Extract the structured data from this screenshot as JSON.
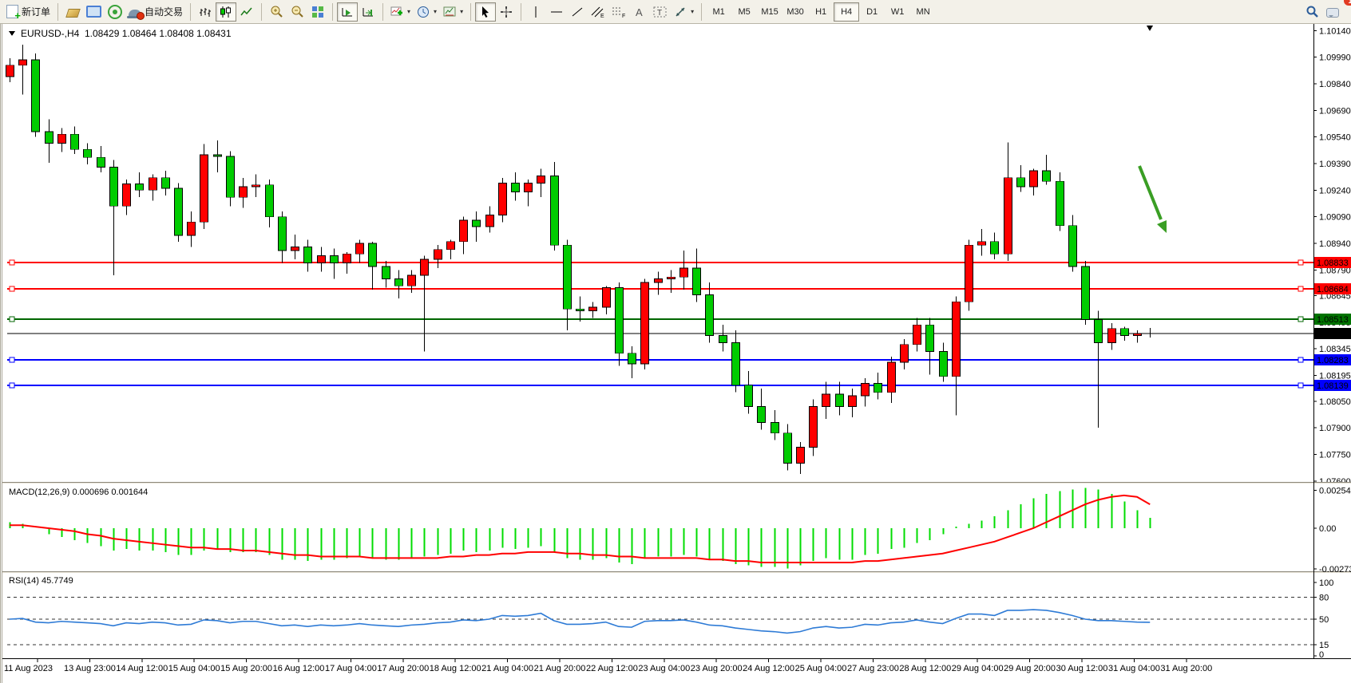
{
  "toolbar": {
    "new_order_label": "新订单",
    "autotrade_label": "自动交易",
    "timeframes": [
      "M1",
      "M5",
      "M15",
      "M30",
      "H1",
      "H4",
      "D1",
      "W1",
      "MN"
    ],
    "active_timeframe": "H4",
    "notification_badge": "1"
  },
  "chart": {
    "title_symbol": "EURUSD-,H4",
    "title_ohlc": "1.08429 1.08464 1.08408 1.08431",
    "y_ticks": [
      "1.10140",
      "1.09990",
      "1.09840",
      "1.09690",
      "1.09540",
      "1.09390",
      "1.09240",
      "1.09090",
      "1.08940",
      "1.08790",
      "1.08645",
      "1.08495",
      "1.08345",
      "1.08195",
      "1.08050",
      "1.07900",
      "1.07750",
      "1.07600"
    ],
    "levels": [
      {
        "price": 1.08833,
        "label": "1.08833",
        "color": "#ff0000",
        "box": "#ff0000",
        "width": 2,
        "handles": true
      },
      {
        "price": 1.08684,
        "label": "1.08684",
        "color": "#ff0000",
        "box": "#ff0000",
        "width": 2,
        "handles": true
      },
      {
        "price": 1.08513,
        "label": "1.08513",
        "color": "#006600",
        "box": "#007300",
        "width": 2,
        "handles": true
      },
      {
        "price": 1.08431,
        "label": "1.08431",
        "color": "#000000",
        "box": "#000000",
        "width": 1,
        "handles": false
      },
      {
        "price": 1.08283,
        "label": "1.08283",
        "color": "#0000ff",
        "box": "#0000ff",
        "width": 2,
        "handles": true
      },
      {
        "price": 1.08139,
        "label": "1.08139",
        "color": "#0000ff",
        "box": "#0000ff",
        "width": 2,
        "handles": true
      }
    ]
  },
  "macd": {
    "label": "MACD(12,26,9) 0.000696 0.001644",
    "axis": [
      {
        "value": 0.002543,
        "label": "0.002543"
      },
      {
        "value": 0,
        "label": "0.00"
      },
      {
        "value": -0.002733,
        "label": "-0.002733"
      }
    ]
  },
  "rsi": {
    "label": "RSI(14) 45.7749",
    "axis": [
      {
        "value": 100,
        "label": "100"
      },
      {
        "value": 80,
        "label": "80"
      },
      {
        "value": 50,
        "label": "50"
      },
      {
        "value": 15,
        "label": "15"
      },
      {
        "value": 0,
        "label": "0"
      }
    ],
    "dashed_levels": [
      80,
      50,
      15
    ]
  },
  "chart_data": {
    "type": "candlestick",
    "symbol": "EURUSD-",
    "timeframe": "H4",
    "up_color": "#ff0000",
    "down_color": "#00cc00",
    "macd_bar_color": "#00dc00",
    "macd_signal_color": "#ff0000",
    "rsi_line_color": "#2e7bd6",
    "arrow_drawing": {
      "type": "arrow-down-right",
      "color": "#3a9e24"
    },
    "x_axis_labels": [
      "11 Aug 2023",
      "13 Aug 23:00",
      "14 Aug 12:00",
      "15 Aug 04:00",
      "15 Aug 20:00",
      "16 Aug 12:00",
      "17 Aug 04:00",
      "17 Aug 20:00",
      "18 Aug 12:00",
      "21 Aug 04:00",
      "21 Aug 20:00",
      "22 Aug 12:00",
      "23 Aug 04:00",
      "23 Aug 20:00",
      "24 Aug 12:00",
      "25 Aug 04:00",
      "27 Aug 23:00",
      "28 Aug 12:00",
      "29 Aug 04:00",
      "29 Aug 20:00",
      "30 Aug 12:00",
      "31 Aug 04:00",
      "31 Aug 20:00"
    ],
    "y_range_main": [
      1.0755,
      1.1014
    ],
    "levels": {
      "resistance": [
        1.08833,
        1.08684
      ],
      "pivot_green": 1.08513,
      "current_price": 1.08431,
      "support": [
        1.08283,
        1.08139
      ]
    },
    "ohlc": [
      [
        1.0988,
        1.09985,
        1.0985,
        1.09945
      ],
      [
        1.09945,
        1.1006,
        1.0978,
        1.09975
      ],
      [
        1.09975,
        1.1001,
        1.0954,
        1.0957
      ],
      [
        1.0957,
        1.0964,
        1.09395,
        1.09505
      ],
      [
        1.09505,
        1.0959,
        1.09455,
        1.09555
      ],
      [
        1.09555,
        1.096,
        1.09445,
        1.0947
      ],
      [
        1.0947,
        1.09505,
        1.09385,
        1.09425
      ],
      [
        1.09425,
        1.0949,
        1.0934,
        1.0937
      ],
      [
        1.0937,
        1.0941,
        1.0876,
        1.0915
      ],
      [
        1.0915,
        1.093,
        1.091,
        1.09275
      ],
      [
        1.09275,
        1.0934,
        1.092,
        1.0924
      ],
      [
        1.0924,
        1.0933,
        1.0918,
        1.0931
      ],
      [
        1.0931,
        1.0935,
        1.0921,
        1.0925
      ],
      [
        1.0925,
        1.0928,
        1.0895,
        1.08985
      ],
      [
        1.08985,
        1.0912,
        1.0892,
        1.0906
      ],
      [
        1.0906,
        1.095,
        1.0902,
        1.0944
      ],
      [
        1.0944,
        1.0952,
        1.0934,
        1.0943
      ],
      [
        1.0943,
        1.0946,
        1.0915,
        1.092
      ],
      [
        1.092,
        1.0931,
        1.0914,
        1.0926
      ],
      [
        1.0926,
        1.0933,
        1.092,
        1.0927
      ],
      [
        1.0927,
        1.093,
        1.0903,
        1.0909
      ],
      [
        1.0909,
        1.0912,
        1.0883,
        1.089
      ],
      [
        1.089,
        1.0899,
        1.0885,
        1.0892
      ],
      [
        1.0892,
        1.0896,
        1.0878,
        1.0883
      ],
      [
        1.0883,
        1.0892,
        1.0878,
        1.0887
      ],
      [
        1.0887,
        1.0891,
        1.0874,
        1.0883
      ],
      [
        1.0883,
        1.0889,
        1.0877,
        1.0888
      ],
      [
        1.0888,
        1.0896,
        1.0883,
        1.0894
      ],
      [
        1.0894,
        1.0895,
        1.0868,
        1.0881
      ],
      [
        1.0881,
        1.0884,
        1.0869,
        1.0874
      ],
      [
        1.0874,
        1.0879,
        1.0863,
        1.087
      ],
      [
        1.087,
        1.0879,
        1.0866,
        1.0876
      ],
      [
        1.0876,
        1.0887,
        1.0833,
        1.0885
      ],
      [
        1.0885,
        1.0893,
        1.088,
        1.08905
      ],
      [
        1.08905,
        1.0896,
        1.0885,
        1.0895
      ],
      [
        1.0895,
        1.0909,
        1.0888,
        1.0907
      ],
      [
        1.0907,
        1.0912,
        1.0895,
        1.09035
      ],
      [
        1.09035,
        1.0915,
        1.09,
        1.091
      ],
      [
        1.091,
        1.0931,
        1.0906,
        1.0928
      ],
      [
        1.0928,
        1.0934,
        1.0918,
        1.0923
      ],
      [
        1.0923,
        1.093,
        1.0915,
        1.0928
      ],
      [
        1.0928,
        1.0936,
        1.092,
        1.0932
      ],
      [
        1.0932,
        1.094,
        1.089,
        1.0893
      ],
      [
        1.0893,
        1.0896,
        1.0845,
        1.0857
      ],
      [
        1.0857,
        1.0864,
        1.085,
        1.0856
      ],
      [
        1.0856,
        1.0861,
        1.0852,
        1.0858
      ],
      [
        1.0858,
        1.087,
        1.0854,
        1.0869
      ],
      [
        1.0869,
        1.0872,
        1.0825,
        1.0832
      ],
      [
        1.0832,
        1.0836,
        1.0818,
        1.0826
      ],
      [
        1.0826,
        1.0874,
        1.0823,
        1.0872
      ],
      [
        1.0872,
        1.0878,
        1.0865,
        1.0874
      ],
      [
        1.0874,
        1.0879,
        1.0866,
        1.0875
      ],
      [
        1.0875,
        1.089,
        1.0868,
        1.088
      ],
      [
        1.088,
        1.0891,
        1.0861,
        1.0865
      ],
      [
        1.0865,
        1.0872,
        1.0838,
        1.0842
      ],
      [
        1.0842,
        1.0848,
        1.0833,
        1.0838
      ],
      [
        1.0838,
        1.0845,
        1.081,
        1.0814
      ],
      [
        1.0814,
        1.0822,
        1.0798,
        1.0802
      ],
      [
        1.0802,
        1.0812,
        1.0789,
        1.0793
      ],
      [
        1.0793,
        1.08,
        1.0783,
        1.0787
      ],
      [
        1.0787,
        1.0792,
        1.0766,
        1.077
      ],
      [
        1.077,
        1.0782,
        1.0764,
        1.0779
      ],
      [
        1.0779,
        1.0806,
        1.0774,
        1.0802
      ],
      [
        1.0802,
        1.0816,
        1.0795,
        1.0809
      ],
      [
        1.0809,
        1.0816,
        1.0797,
        1.0802
      ],
      [
        1.0802,
        1.0812,
        1.0796,
        1.0808
      ],
      [
        1.0808,
        1.0818,
        1.0802,
        1.0815
      ],
      [
        1.0815,
        1.0821,
        1.0806,
        1.081
      ],
      [
        1.081,
        1.083,
        1.0804,
        1.0827
      ],
      [
        1.0827,
        1.084,
        1.0823,
        1.0837
      ],
      [
        1.0837,
        1.0852,
        1.0833,
        1.0848
      ],
      [
        1.0848,
        1.0852,
        1.082,
        1.0833
      ],
      [
        1.0833,
        1.0838,
        1.0816,
        1.0819
      ],
      [
        1.0819,
        1.0864,
        1.0797,
        1.0861
      ],
      [
        1.0861,
        1.0896,
        1.0856,
        1.0893
      ],
      [
        1.0893,
        1.0902,
        1.0887,
        1.0895
      ],
      [
        1.0895,
        1.09,
        1.0885,
        1.0888
      ],
      [
        1.0888,
        1.0951,
        1.0884,
        1.0931
      ],
      [
        1.0931,
        1.0938,
        1.0923,
        1.0926
      ],
      [
        1.0926,
        1.0936,
        1.0921,
        1.0935
      ],
      [
        1.0935,
        1.0944,
        1.0927,
        1.0929
      ],
      [
        1.0929,
        1.0934,
        1.0901,
        1.0904
      ],
      [
        1.0904,
        1.091,
        1.0878,
        1.0881
      ],
      [
        1.0881,
        1.0884,
        1.0848,
        1.0851
      ],
      [
        1.0851,
        1.0856,
        1.079,
        1.0838
      ],
      [
        1.0838,
        1.0849,
        1.0834,
        1.0846
      ],
      [
        1.0846,
        1.0847,
        1.0839,
        1.0842
      ],
      [
        1.0842,
        1.0845,
        1.0838,
        1.0843
      ],
      [
        1.08429,
        1.08464,
        1.08408,
        1.08431
      ]
    ],
    "macd_histogram": [
      0.0004,
      0.0003,
      0.0,
      -0.0004,
      -0.0006,
      -0.0008,
      -0.001,
      -0.0012,
      -0.0015,
      -0.0014,
      -0.0015,
      -0.0015,
      -0.0016,
      -0.0018,
      -0.0018,
      -0.0015,
      -0.0014,
      -0.0016,
      -0.0016,
      -0.0016,
      -0.0018,
      -0.0021,
      -0.0021,
      -0.0022,
      -0.0021,
      -0.0021,
      -0.002,
      -0.0019,
      -0.002,
      -0.0021,
      -0.0021,
      -0.002,
      -0.0019,
      -0.0018,
      -0.0017,
      -0.0015,
      -0.0016,
      -0.0015,
      -0.0013,
      -0.0014,
      -0.0013,
      -0.0012,
      -0.0016,
      -0.002,
      -0.0021,
      -0.0021,
      -0.002,
      -0.0023,
      -0.0024,
      -0.002,
      -0.0019,
      -0.0019,
      -0.0018,
      -0.0019,
      -0.0021,
      -0.0022,
      -0.0024,
      -0.0025,
      -0.0026,
      -0.0026,
      -0.0027,
      -0.0025,
      -0.0022,
      -0.002,
      -0.0021,
      -0.0021,
      -0.0018,
      -0.0017,
      -0.0014,
      -0.0013,
      -0.001,
      -0.0008,
      -0.0004,
      0.0001,
      0.0003,
      0.0005,
      0.0008,
      0.0012,
      0.0016,
      0.002,
      0.0023,
      0.0025,
      0.0026,
      0.0027,
      0.0026,
      0.0023,
      0.0018,
      0.0012,
      0.0007
    ],
    "macd_signal": [
      0.0002,
      0.0002,
      0.0001,
      0.0,
      -0.0001,
      -0.0002,
      -0.0004,
      -0.0005,
      -0.0007,
      -0.0008,
      -0.0009,
      -0.001,
      -0.0011,
      -0.0012,
      -0.0013,
      -0.0013,
      -0.0014,
      -0.0014,
      -0.0015,
      -0.0015,
      -0.0016,
      -0.0017,
      -0.0018,
      -0.0018,
      -0.0019,
      -0.0019,
      -0.0019,
      -0.0019,
      -0.002,
      -0.002,
      -0.002,
      -0.002,
      -0.002,
      -0.002,
      -0.0019,
      -0.0019,
      -0.0018,
      -0.0018,
      -0.0017,
      -0.0017,
      -0.0016,
      -0.0016,
      -0.0016,
      -0.0017,
      -0.0017,
      -0.0018,
      -0.0018,
      -0.0019,
      -0.0019,
      -0.002,
      -0.002,
      -0.002,
      -0.002,
      -0.002,
      -0.0021,
      -0.0021,
      -0.0022,
      -0.0022,
      -0.0023,
      -0.0023,
      -0.0023,
      -0.0023,
      -0.0023,
      -0.0023,
      -0.0023,
      -0.0023,
      -0.0022,
      -0.0022,
      -0.0021,
      -0.002,
      -0.0019,
      -0.0018,
      -0.0017,
      -0.0015,
      -0.0013,
      -0.0011,
      -0.0009,
      -0.0006,
      -0.0003,
      0.0,
      0.0004,
      0.0008,
      0.0012,
      0.0016,
      0.0019,
      0.0021,
      0.0022,
      0.0021,
      0.0016
    ],
    "rsi": [
      50,
      51,
      46,
      45,
      47,
      46,
      45,
      44,
      41,
      45,
      44,
      46,
      45,
      42,
      43,
      49,
      48,
      45,
      47,
      47,
      44,
      41,
      42,
      40,
      42,
      41,
      42,
      44,
      42,
      41,
      40,
      42,
      43,
      45,
      46,
      49,
      48,
      50,
      55,
      54,
      55,
      58,
      48,
      43,
      43,
      44,
      46,
      40,
      39,
      47,
      48,
      48,
      49,
      46,
      42,
      41,
      38,
      36,
      34,
      33,
      31,
      33,
      38,
      40,
      38,
      39,
      43,
      42,
      45,
      46,
      49,
      46,
      44,
      51,
      57,
      57,
      55,
      62,
      62,
      63,
      62,
      59,
      55,
      50,
      48,
      48,
      47,
      46,
      45.77
    ]
  }
}
